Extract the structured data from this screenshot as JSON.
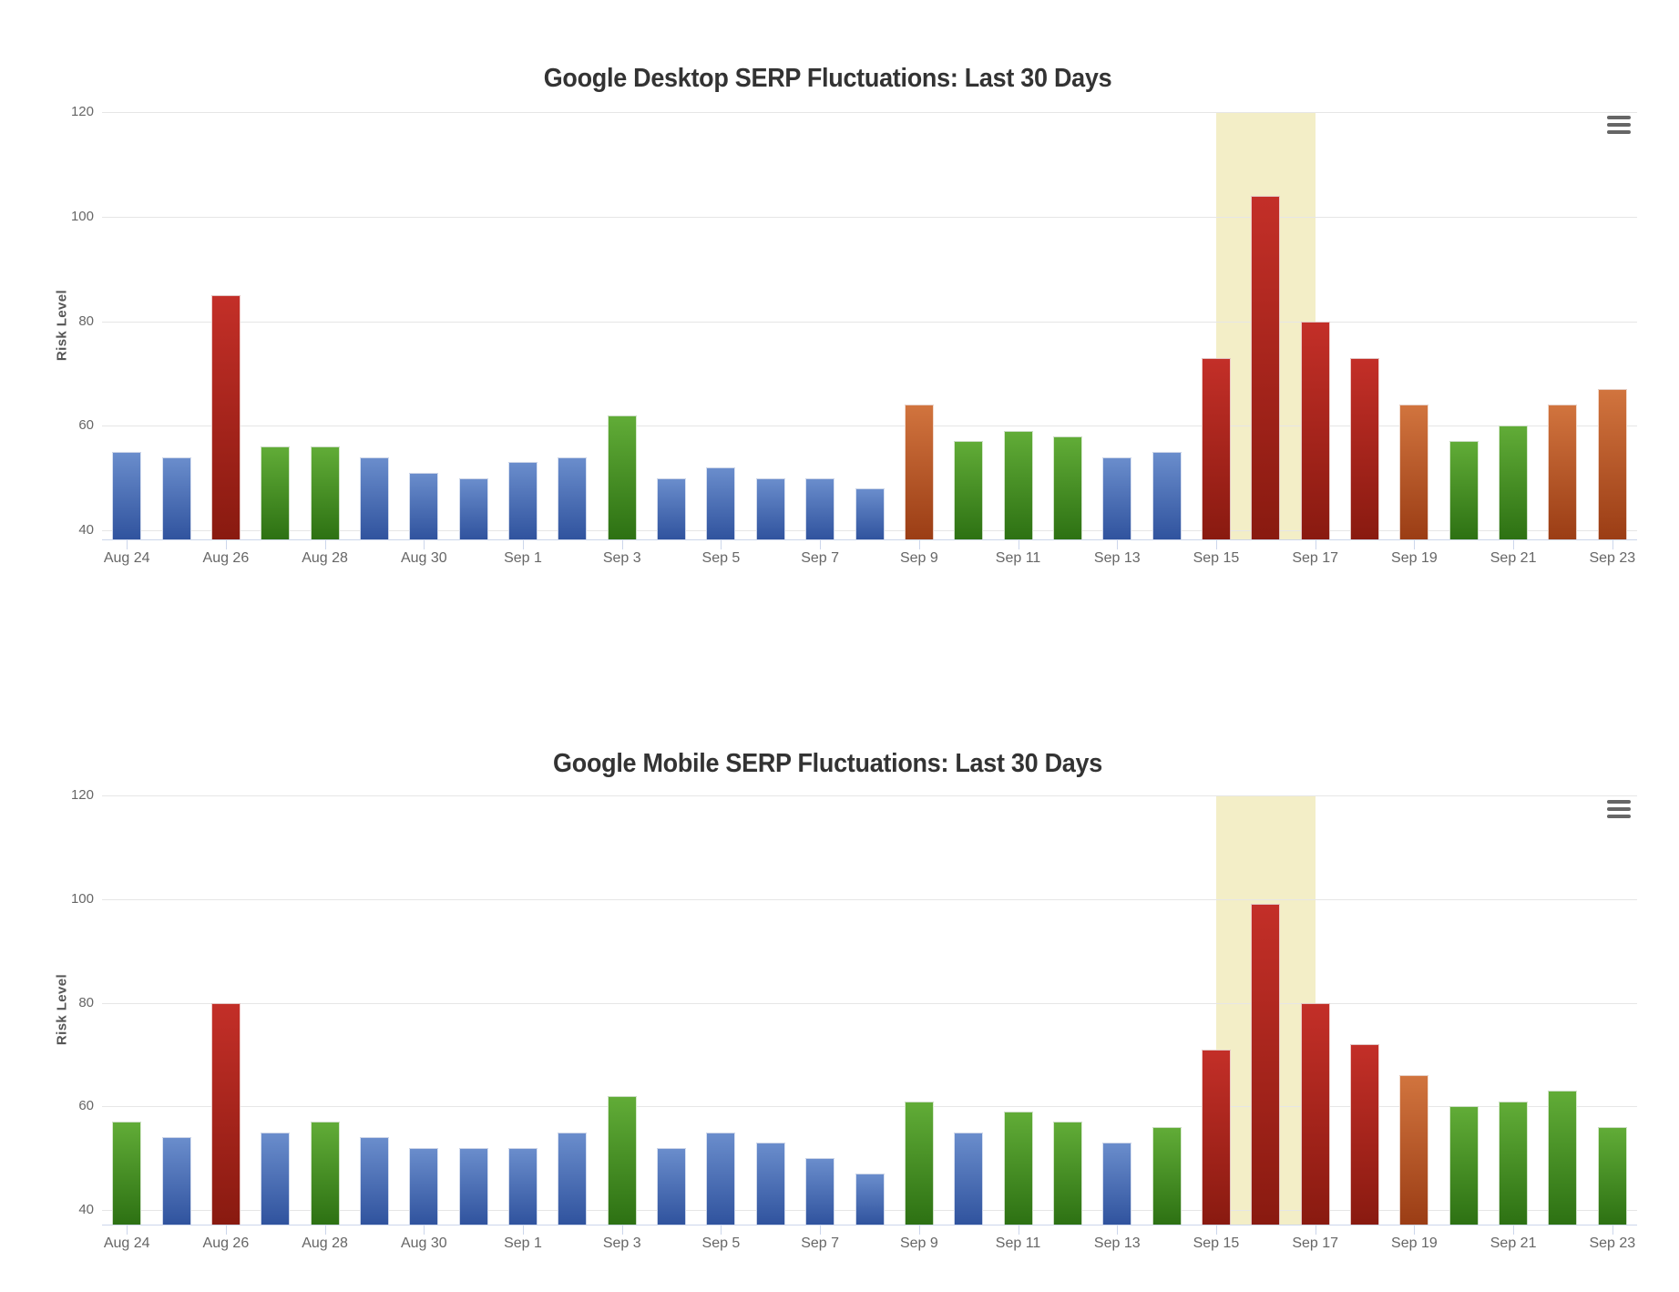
{
  "page": {
    "background": "#ffffff"
  },
  "palette": {
    "blue": {
      "top": "#6a8dcc",
      "bottom": "#30539e"
    },
    "green": {
      "top": "#61ac37",
      "bottom": "#2d7113"
    },
    "red": {
      "top": "#c32f28",
      "bottom": "#891a10"
    },
    "orange": {
      "top": "#d1743e",
      "bottom": "#9b3d15"
    },
    "band": "#f3eec7",
    "grid": "#e6e6e6",
    "axis_line": "#ccd6eb",
    "tick_label": "#666666",
    "title": "#333333",
    "axis_title": "#555555",
    "menu_icon": "#666666",
    "bar_border": "rgba(255,255,255,0.75)"
  },
  "icons": {
    "export_menu": "hamburger-menu-icon"
  },
  "chart_data": [
    {
      "type": "bar",
      "title": "Google Desktop SERP Fluctuations: Last 30 Days",
      "xlabel": "",
      "ylabel": "Risk Level",
      "ylim": [
        40,
        120
      ],
      "yticks": [
        40,
        60,
        80,
        100,
        120
      ],
      "grid": true,
      "legend": "none",
      "x_label_step": 2,
      "categories": [
        "Aug 24",
        "Aug 25",
        "Aug 26",
        "Aug 27",
        "Aug 28",
        "Aug 29",
        "Aug 30",
        "Aug 31",
        "Sep 1",
        "Sep 2",
        "Sep 3",
        "Sep 4",
        "Sep 5",
        "Sep 6",
        "Sep 7",
        "Sep 8",
        "Sep 9",
        "Sep 10",
        "Sep 11",
        "Sep 12",
        "Sep 13",
        "Sep 14",
        "Sep 15",
        "Sep 16",
        "Sep 17",
        "Sep 18",
        "Sep 19",
        "Sep 20",
        "Sep 21",
        "Sep 22",
        "Sep 23"
      ],
      "values": [
        55,
        54,
        85,
        56,
        56,
        54,
        51,
        50,
        53,
        54,
        62,
        50,
        52,
        50,
        50,
        48,
        64,
        57,
        59,
        58,
        54,
        55,
        73,
        104,
        80,
        73,
        64,
        57,
        60,
        64,
        67
      ],
      "bar_colors": [
        "blue",
        "blue",
        "red",
        "green",
        "green",
        "blue",
        "blue",
        "blue",
        "blue",
        "blue",
        "green",
        "blue",
        "blue",
        "blue",
        "blue",
        "blue",
        "orange",
        "green",
        "green",
        "green",
        "blue",
        "blue",
        "red",
        "red",
        "red",
        "red",
        "orange",
        "green",
        "green",
        "orange",
        "orange"
      ],
      "plot_band": {
        "from": "Sep 15",
        "to": "Sep 17",
        "color": "#f3eec7"
      }
    },
    {
      "type": "bar",
      "title": "Google Mobile SERP Fluctuations: Last 30 Days",
      "xlabel": "",
      "ylabel": "Risk Level",
      "ylim": [
        40,
        120
      ],
      "yticks": [
        40,
        60,
        80,
        100,
        120
      ],
      "grid": true,
      "legend": "none",
      "x_label_step": 2,
      "categories": [
        "Aug 24",
        "Aug 25",
        "Aug 26",
        "Aug 27",
        "Aug 28",
        "Aug 29",
        "Aug 30",
        "Aug 31",
        "Sep 1",
        "Sep 2",
        "Sep 3",
        "Sep 4",
        "Sep 5",
        "Sep 6",
        "Sep 7",
        "Sep 8",
        "Sep 9",
        "Sep 10",
        "Sep 11",
        "Sep 12",
        "Sep 13",
        "Sep 14",
        "Sep 15",
        "Sep 16",
        "Sep 17",
        "Sep 18",
        "Sep 19",
        "Sep 20",
        "Sep 21",
        "Sep 22",
        "Sep 23"
      ],
      "values": [
        57,
        54,
        80,
        55,
        57,
        54,
        52,
        52,
        52,
        55,
        62,
        52,
        55,
        53,
        50,
        47,
        61,
        55,
        59,
        57,
        53,
        56,
        71,
        99,
        80,
        72,
        66,
        60,
        61,
        63,
        56
      ],
      "bar_colors": [
        "green",
        "blue",
        "red",
        "blue",
        "green",
        "blue",
        "blue",
        "blue",
        "blue",
        "blue",
        "green",
        "blue",
        "blue",
        "blue",
        "blue",
        "blue",
        "green",
        "blue",
        "green",
        "green",
        "blue",
        "green",
        "red",
        "red",
        "red",
        "red",
        "orange",
        "green",
        "green",
        "green",
        "green"
      ],
      "plot_band": {
        "from": "Sep 15",
        "to": "Sep 17",
        "color": "#f3eec7"
      }
    }
  ]
}
